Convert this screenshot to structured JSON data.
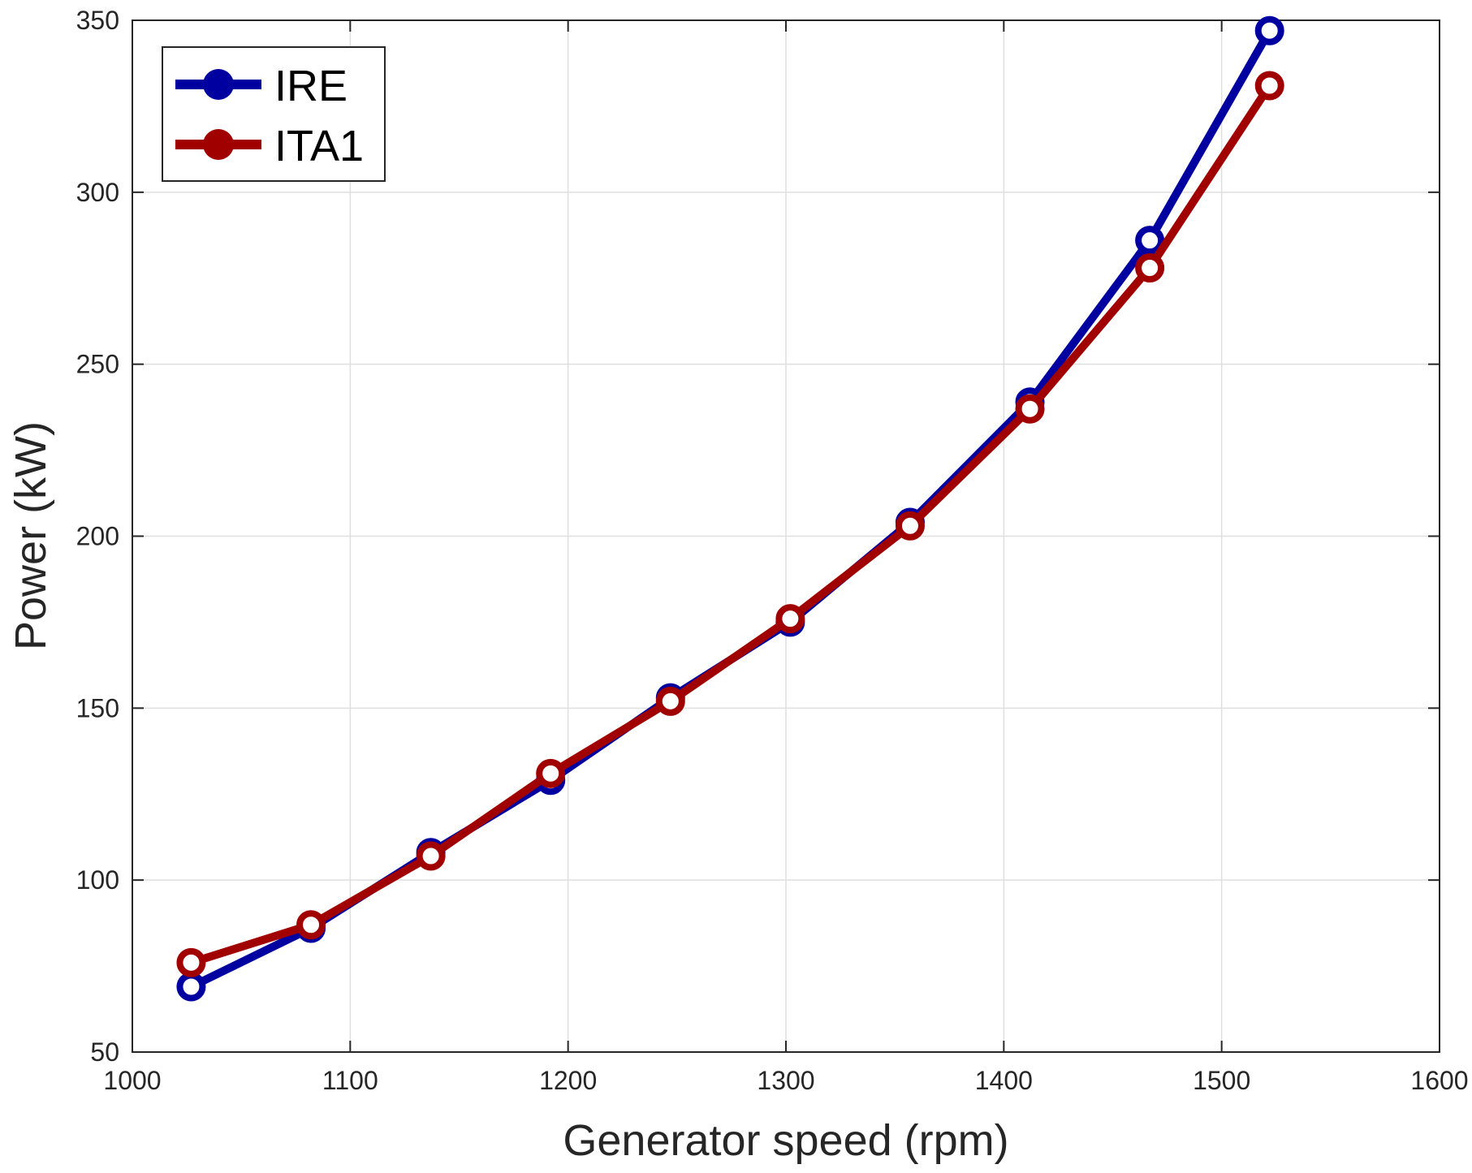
{
  "chart_data": {
    "type": "line",
    "title": "",
    "xlabel": "Generator speed (rpm)",
    "ylabel": "Power (kW)",
    "xlim": [
      1000,
      1600
    ],
    "ylim": [
      50,
      350
    ],
    "xticks": [
      1000,
      1100,
      1200,
      1300,
      1400,
      1500,
      1600
    ],
    "yticks": [
      50,
      100,
      150,
      200,
      250,
      300,
      350
    ],
    "xtick_labels": [
      "1000",
      "1100",
      "1200",
      "1300",
      "1400",
      "1500",
      "1600"
    ],
    "ytick_labels": [
      "50",
      "100",
      "150",
      "200",
      "250",
      "300",
      "350"
    ],
    "grid": true,
    "legend_position": "top-left",
    "series": [
      {
        "name": "IRE",
        "color": "#0000a0",
        "x": [
          1027,
          1082,
          1137,
          1192,
          1247,
          1302,
          1357,
          1412,
          1467,
          1522
        ],
        "y": [
          69,
          86,
          108,
          129,
          153,
          175,
          204,
          239,
          286,
          347
        ]
      },
      {
        "name": "ITA1",
        "color": "#a00000",
        "x": [
          1027,
          1082,
          1137,
          1192,
          1247,
          1302,
          1357,
          1412,
          1467,
          1522
        ],
        "y": [
          76,
          87,
          107,
          131,
          152,
          176,
          203,
          237,
          278,
          331
        ]
      }
    ]
  }
}
